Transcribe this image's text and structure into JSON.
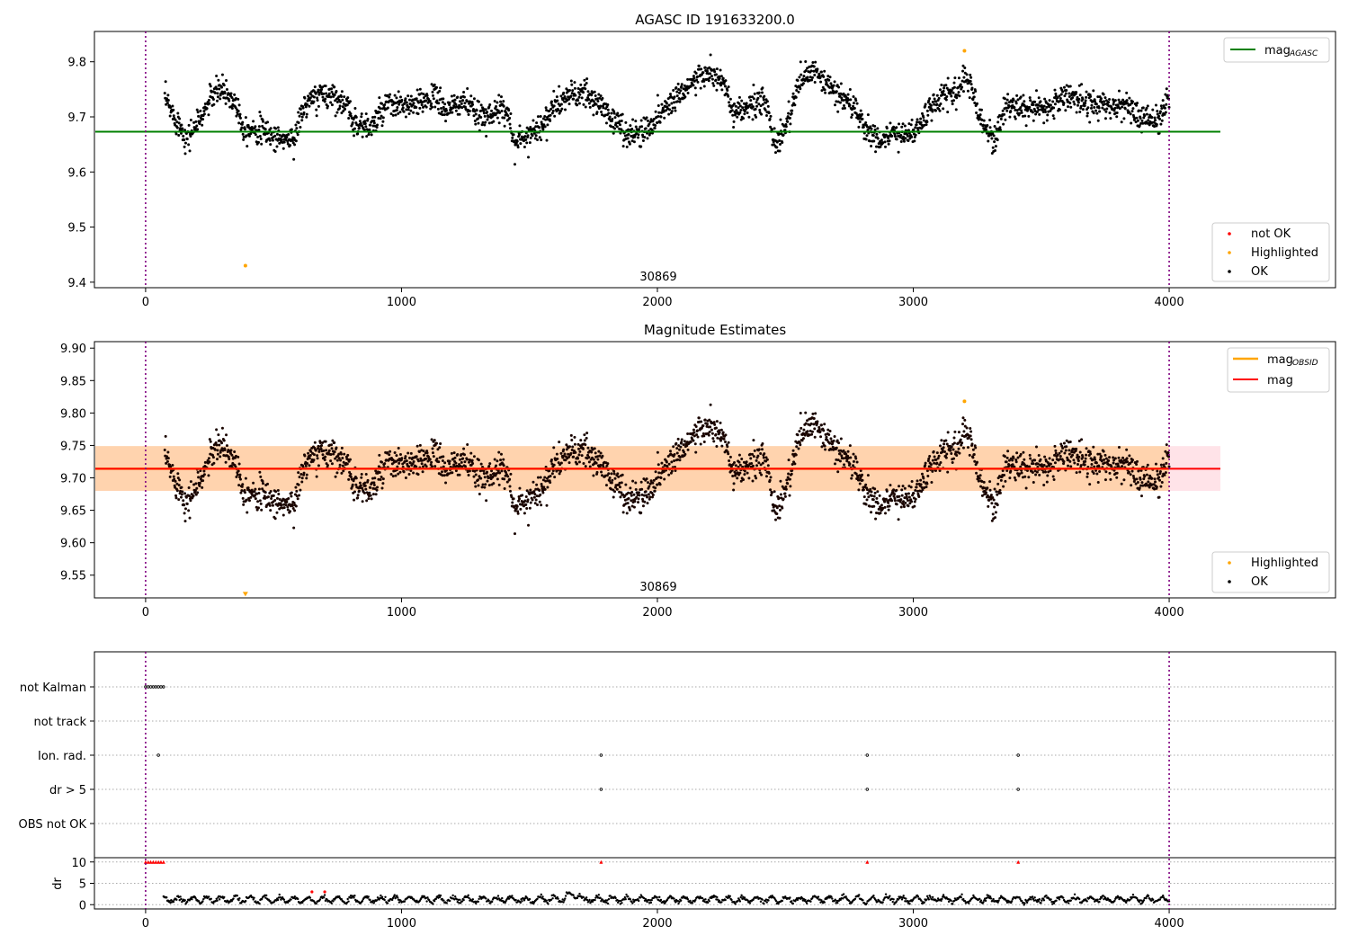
{
  "chart_data": [
    {
      "type": "scatter",
      "title": "AGASC ID 191633200.0",
      "xlim": [
        -200,
        4650
      ],
      "ylim": [
        9.39,
        9.855
      ],
      "xticks": [
        0,
        1000,
        2000,
        3000,
        4000
      ],
      "yticks": [
        9.4,
        9.5,
        9.6,
        9.7,
        9.8
      ],
      "grid": false,
      "obsid_label": "30869",
      "obsid_label_x": 2000,
      "obs_boundaries": [
        0,
        4000
      ],
      "reference_line": {
        "label": "mag",
        "subscript": "AGASC",
        "value": 9.673,
        "x_range": [
          -200,
          4200
        ],
        "color": "#008000"
      },
      "legend_top": "top-right",
      "legend_bottom": "bottom-right",
      "scatter_legend": [
        {
          "label": "not OK",
          "color": "#ff0000"
        },
        {
          "label": "Highlighted",
          "color": "#ffa500"
        },
        {
          "label": "OK",
          "color": "#000000"
        }
      ],
      "series": [
        {
          "name": "OK",
          "color": "#000000",
          "x": [
            80,
            100,
            140,
            160,
            220,
            260,
            300,
            340,
            360,
            380,
            420,
            480,
            520,
            580,
            620,
            680,
            740,
            780,
            820,
            880,
            940,
            1000,
            1060,
            1120,
            1180,
            1240,
            1300,
            1360,
            1420,
            1440,
            1500,
            1560,
            1600,
            1660,
            1720,
            1780,
            1840,
            1880,
            1940,
            2000,
            2060,
            2100,
            2160,
            2200,
            2260,
            2300,
            2360,
            2420,
            2460,
            2500,
            2560,
            2620,
            2680,
            2740,
            2780,
            2820,
            2880,
            2940,
            3000,
            3060,
            3120,
            3180,
            3200,
            3240,
            3280,
            3320,
            3360,
            3420,
            3480,
            3540,
            3600,
            3660,
            3720,
            3780,
            3840,
            3880,
            3920,
            3960,
            4000
          ],
          "y": [
            9.73,
            9.71,
            9.68,
            9.66,
            9.7,
            9.74,
            9.75,
            9.73,
            9.72,
            9.68,
            9.68,
            9.67,
            9.66,
            9.66,
            9.72,
            9.74,
            9.74,
            9.72,
            9.69,
            9.68,
            9.72,
            9.72,
            9.72,
            9.74,
            9.71,
            9.73,
            9.7,
            9.71,
            9.71,
            9.65,
            9.67,
            9.69,
            9.72,
            9.74,
            9.74,
            9.72,
            9.69,
            9.67,
            9.67,
            9.7,
            9.73,
            9.75,
            9.77,
            9.78,
            9.76,
            9.7,
            9.72,
            9.73,
            9.65,
            9.68,
            9.77,
            9.78,
            9.75,
            9.73,
            9.71,
            9.67,
            9.66,
            9.67,
            9.67,
            9.71,
            9.74,
            9.75,
            9.78,
            9.73,
            9.68,
            9.66,
            9.72,
            9.72,
            9.71,
            9.72,
            9.74,
            9.73,
            9.72,
            9.72,
            9.72,
            9.7,
            9.7,
            9.69,
            9.74
          ]
        },
        {
          "name": "Highlighted",
          "color": "#ffa500",
          "x": [
            390,
            3200
          ],
          "y": [
            9.43,
            9.82
          ]
        }
      ]
    },
    {
      "type": "scatter",
      "title": "Magnitude Estimates",
      "xlim": [
        -200,
        4650
      ],
      "ylim": [
        9.515,
        9.91
      ],
      "xticks": [
        0,
        1000,
        2000,
        3000,
        4000
      ],
      "yticks": [
        9.55,
        9.6,
        9.65,
        9.7,
        9.75,
        9.8,
        9.85,
        9.9
      ],
      "grid": false,
      "obsid_label": "30869",
      "obsid_label_x": 2000,
      "obs_boundaries": [
        0,
        4000
      ],
      "band_outer": {
        "y": [
          9.68,
          9.749
        ],
        "x_range": [
          -200,
          4200
        ],
        "color": "#ffc0cb"
      },
      "band_inner": {
        "y": [
          9.68,
          9.749
        ],
        "x_range": [
          -200,
          4000
        ],
        "color": "#ffa500"
      },
      "lines": [
        {
          "label": "mag",
          "subscript": "OBSID",
          "value": 9.714,
          "x_range": [
            -200,
            4000
          ],
          "color": "#ffa500"
        },
        {
          "label": "mag",
          "subscript": "",
          "value": 9.714,
          "x_range": [
            -200,
            4200
          ],
          "color": "#ff0000"
        }
      ],
      "legend_top": "top-right",
      "legend_bottom": "bottom-right",
      "scatter_legend": [
        {
          "label": "Highlighted",
          "color": "#ffa500"
        },
        {
          "label": "OK",
          "color": "#000000"
        }
      ],
      "highlighted_marker": {
        "x": 390,
        "y": 9.52
      }
    },
    {
      "type": "scatter",
      "title": "",
      "xlim": [
        -200,
        4650
      ],
      "xticks": [
        0,
        1000,
        2000,
        3000,
        4000
      ],
      "grid": true,
      "obs_boundaries": [
        0,
        4000
      ],
      "flag_categories": [
        "not Kalman",
        "not track",
        "Ion. rad.",
        "dr > 5",
        "OBS not OK"
      ],
      "flags": [
        {
          "category": "not Kalman",
          "x": [
            0,
            10,
            20,
            30,
            40,
            50,
            60,
            70
          ]
        },
        {
          "category": "not track",
          "x": []
        },
        {
          "category": "Ion. rad.",
          "x": [
            50,
            1780,
            2820,
            3410
          ]
        },
        {
          "category": "dr > 5",
          "x": [
            1780,
            2820,
            3410
          ]
        },
        {
          "category": "OBS not OK",
          "x": []
        }
      ],
      "dr_panel": {
        "ylabel": "dr",
        "yticks": [
          0,
          5,
          10
        ],
        "ylim": [
          -1,
          11
        ],
        "red_points_x": [
          0,
          10,
          20,
          30,
          40,
          50,
          60,
          70,
          1780,
          2820,
          3410
        ],
        "red_points_y": 10,
        "baseline_mean": 1.2,
        "baseline_x_range": [
          70,
          4000
        ],
        "bump": {
          "x": [
            650,
            700
          ],
          "y": 3
        }
      }
    }
  ]
}
